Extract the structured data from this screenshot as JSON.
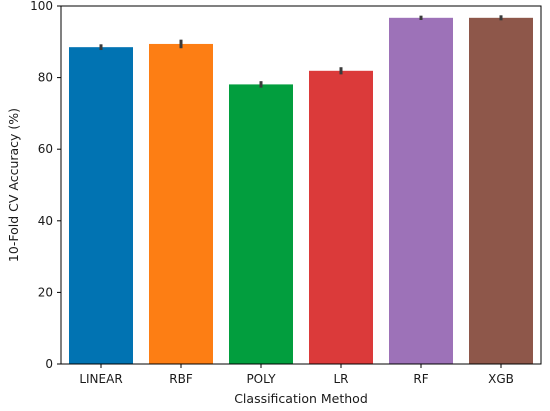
{
  "chart_data": {
    "type": "bar",
    "title": "",
    "xlabel": "Classification Method",
    "ylabel": "10-Fold CV Accuracy (%)",
    "categories": [
      "LINEAR",
      "RBF",
      "POLY",
      "LR",
      "RF",
      "XGB"
    ],
    "values": [
      88.5,
      89.4,
      78.1,
      81.9,
      96.7,
      96.7
    ],
    "error": [
      0.8,
      1.2,
      0.9,
      1.0,
      0.6,
      0.7
    ],
    "colors": [
      "#0173b2",
      "#fd7e14",
      "#029e3e",
      "#db3a3a",
      "#9d72b8",
      "#8e574a"
    ],
    "ylim": [
      0,
      100
    ],
    "yticks": [
      0,
      20,
      40,
      60,
      80,
      100
    ],
    "grid": false,
    "legend": "none"
  }
}
